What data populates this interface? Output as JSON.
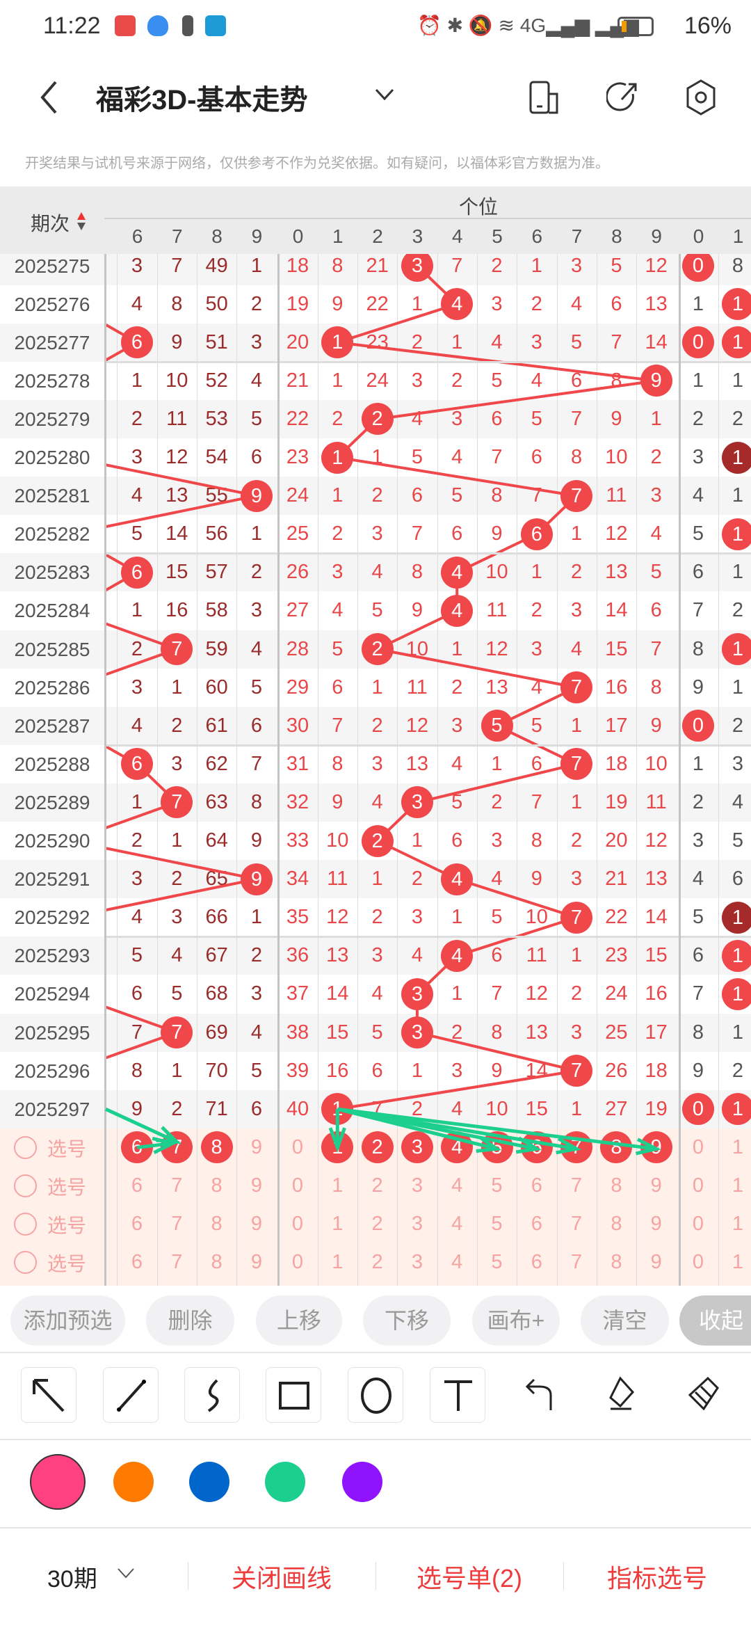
{
  "status": {
    "time": "11:22",
    "battery": "16%",
    "network": "4G"
  },
  "header": {
    "title": "福彩3D-基本走势",
    "notice": "开奖结果与试机号来源于网络，仅供参考不作为兑奖依据。如有疑问，以福体彩官方数据为准。"
  },
  "table": {
    "period_label": "期次",
    "group_ones_label": "个位",
    "left_cols": [
      "6",
      "7",
      "8",
      "9"
    ],
    "ones_cols": [
      "0",
      "1",
      "2",
      "3",
      "4",
      "5",
      "6",
      "7",
      "8",
      "9"
    ],
    "right_cols": [
      "0",
      "1"
    ],
    "colors": {
      "hit": "#f0474a",
      "hit_dark": "#a52a2a",
      "left_text": "#9b2c2c",
      "ones_text": "#e8474a",
      "right_text": "#555555",
      "pick_text": "#f6a3a3"
    },
    "rows": [
      {
        "period": "2025275",
        "left": [
          "3",
          "7",
          "49",
          "1"
        ],
        "left_hit": null,
        "ones": [
          "18",
          "8",
          "21",
          "3",
          "7",
          "2",
          "1",
          "3",
          "5",
          "12"
        ],
        "ones_hit": 3,
        "right": [
          "0",
          "8"
        ],
        "right_hits": [
          0
        ],
        "right_dark": []
      },
      {
        "period": "2025276",
        "left": [
          "4",
          "8",
          "50",
          "2"
        ],
        "left_hit": null,
        "ones": [
          "19",
          "9",
          "22",
          "1",
          "4",
          "3",
          "2",
          "4",
          "6",
          "13"
        ],
        "ones_hit": 4,
        "right": [
          "1",
          "1"
        ],
        "right_hits": [
          1
        ],
        "right_dark": []
      },
      {
        "period": "2025277",
        "left": [
          "6",
          "9",
          "51",
          "3"
        ],
        "left_hit": 0,
        "ones": [
          "20",
          "1",
          "23",
          "2",
          "1",
          "4",
          "3",
          "5",
          "7",
          "14"
        ],
        "ones_hit": 1,
        "right": [
          "0",
          "1"
        ],
        "right_hits": [
          0,
          1
        ],
        "right_dark": []
      },
      {
        "period": "2025278",
        "left": [
          "1",
          "10",
          "52",
          "4"
        ],
        "left_hit": null,
        "ones": [
          "21",
          "1",
          "24",
          "3",
          "2",
          "5",
          "4",
          "6",
          "8",
          "9"
        ],
        "ones_hit": 9,
        "right": [
          "1",
          "1"
        ],
        "right_hits": [],
        "right_dark": []
      },
      {
        "period": "2025279",
        "left": [
          "2",
          "11",
          "53",
          "5"
        ],
        "left_hit": null,
        "ones": [
          "22",
          "2",
          "2",
          "4",
          "3",
          "6",
          "5",
          "7",
          "9",
          "1"
        ],
        "ones_hit": 2,
        "right": [
          "2",
          "2"
        ],
        "right_hits": [],
        "right_dark": []
      },
      {
        "period": "2025280",
        "left": [
          "3",
          "12",
          "54",
          "6"
        ],
        "left_hit": null,
        "ones": [
          "23",
          "1",
          "1",
          "5",
          "4",
          "7",
          "6",
          "8",
          "10",
          "2"
        ],
        "ones_hit": 1,
        "right": [
          "3",
          "1"
        ],
        "right_hits": [
          1
        ],
        "right_dark": [
          1
        ]
      },
      {
        "period": "2025281",
        "left": [
          "4",
          "13",
          "55",
          "9"
        ],
        "left_hit": 3,
        "ones": [
          "24",
          "1",
          "2",
          "6",
          "5",
          "8",
          "7",
          "7",
          "11",
          "3"
        ],
        "ones_hit": 7,
        "right": [
          "4",
          "1"
        ],
        "right_hits": [],
        "right_dark": []
      },
      {
        "period": "2025282",
        "left": [
          "5",
          "14",
          "56",
          "1"
        ],
        "left_hit": null,
        "ones": [
          "25",
          "2",
          "3",
          "7",
          "6",
          "9",
          "6",
          "1",
          "12",
          "4"
        ],
        "ones_hit": 6,
        "right": [
          "5",
          "1"
        ],
        "right_hits": [
          1
        ],
        "right_dark": []
      },
      {
        "period": "2025283",
        "left": [
          "6",
          "15",
          "57",
          "2"
        ],
        "left_hit": 0,
        "ones": [
          "26",
          "3",
          "4",
          "8",
          "4",
          "10",
          "1",
          "2",
          "13",
          "5"
        ],
        "ones_hit": 4,
        "right": [
          "6",
          "1"
        ],
        "right_hits": [],
        "right_dark": []
      },
      {
        "period": "2025284",
        "left": [
          "1",
          "16",
          "58",
          "3"
        ],
        "left_hit": null,
        "ones": [
          "27",
          "4",
          "5",
          "9",
          "4",
          "11",
          "2",
          "3",
          "14",
          "6"
        ],
        "ones_hit": 4,
        "right": [
          "7",
          "2"
        ],
        "right_hits": [],
        "right_dark": []
      },
      {
        "period": "2025285",
        "left": [
          "2",
          "7",
          "59",
          "4"
        ],
        "left_hit": 1,
        "ones": [
          "28",
          "5",
          "2",
          "10",
          "1",
          "12",
          "3",
          "4",
          "15",
          "7"
        ],
        "ones_hit": 2,
        "right": [
          "8",
          "1"
        ],
        "right_hits": [
          1
        ],
        "right_dark": []
      },
      {
        "period": "2025286",
        "left": [
          "3",
          "1",
          "60",
          "5"
        ],
        "left_hit": null,
        "ones": [
          "29",
          "6",
          "1",
          "11",
          "2",
          "13",
          "4",
          "7",
          "16",
          "8"
        ],
        "ones_hit": 7,
        "right": [
          "9",
          "1"
        ],
        "right_hits": [],
        "right_dark": []
      },
      {
        "period": "2025287",
        "left": [
          "4",
          "2",
          "61",
          "6"
        ],
        "left_hit": null,
        "ones": [
          "30",
          "7",
          "2",
          "12",
          "3",
          "5",
          "5",
          "1",
          "17",
          "9"
        ],
        "ones_hit": 5,
        "right": [
          "0",
          "2"
        ],
        "right_hits": [
          0
        ],
        "right_dark": []
      },
      {
        "period": "2025288",
        "left": [
          "6",
          "3",
          "62",
          "7"
        ],
        "left_hit": 0,
        "ones": [
          "31",
          "8",
          "3",
          "13",
          "4",
          "1",
          "6",
          "7",
          "18",
          "10"
        ],
        "ones_hit": 7,
        "right": [
          "1",
          "3"
        ],
        "right_hits": [],
        "right_dark": []
      },
      {
        "period": "2025289",
        "left": [
          "1",
          "7",
          "63",
          "8"
        ],
        "left_hit": 1,
        "ones": [
          "32",
          "9",
          "4",
          "3",
          "5",
          "2",
          "7",
          "1",
          "19",
          "11"
        ],
        "ones_hit": 3,
        "right": [
          "2",
          "4"
        ],
        "right_hits": [],
        "right_dark": []
      },
      {
        "period": "2025290",
        "left": [
          "2",
          "1",
          "64",
          "9"
        ],
        "left_hit": null,
        "ones": [
          "33",
          "10",
          "2",
          "1",
          "6",
          "3",
          "8",
          "2",
          "20",
          "12"
        ],
        "ones_hit": 2,
        "right": [
          "3",
          "5"
        ],
        "right_hits": [],
        "right_dark": []
      },
      {
        "period": "2025291",
        "left": [
          "3",
          "2",
          "65",
          "9"
        ],
        "left_hit": 3,
        "ones": [
          "34",
          "11",
          "1",
          "2",
          "4",
          "4",
          "9",
          "3",
          "21",
          "13"
        ],
        "ones_hit": 4,
        "right": [
          "4",
          "6"
        ],
        "right_hits": [],
        "right_dark": []
      },
      {
        "period": "2025292",
        "left": [
          "4",
          "3",
          "66",
          "1"
        ],
        "left_hit": null,
        "ones": [
          "35",
          "12",
          "2",
          "3",
          "1",
          "5",
          "10",
          "7",
          "22",
          "14"
        ],
        "ones_hit": 7,
        "right": [
          "5",
          "1"
        ],
        "right_hits": [
          1
        ],
        "right_dark": [
          1
        ]
      },
      {
        "period": "2025293",
        "left": [
          "5",
          "4",
          "67",
          "2"
        ],
        "left_hit": null,
        "ones": [
          "36",
          "13",
          "3",
          "4",
          "4",
          "6",
          "11",
          "1",
          "23",
          "15"
        ],
        "ones_hit": 4,
        "right": [
          "6",
          "1"
        ],
        "right_hits": [
          1
        ],
        "right_dark": []
      },
      {
        "period": "2025294",
        "left": [
          "6",
          "5",
          "68",
          "3"
        ],
        "left_hit": null,
        "ones": [
          "37",
          "14",
          "4",
          "3",
          "1",
          "7",
          "12",
          "2",
          "24",
          "16"
        ],
        "ones_hit": 3,
        "right": [
          "7",
          "1"
        ],
        "right_hits": [
          1
        ],
        "right_dark": []
      },
      {
        "period": "2025295",
        "left": [
          "7",
          "7",
          "69",
          "4"
        ],
        "left_hit": 1,
        "ones": [
          "38",
          "15",
          "5",
          "3",
          "2",
          "8",
          "13",
          "3",
          "25",
          "17"
        ],
        "ones_hit": 3,
        "right": [
          "8",
          "1"
        ],
        "right_hits": [],
        "right_dark": []
      },
      {
        "period": "2025296",
        "left": [
          "8",
          "1",
          "70",
          "5"
        ],
        "left_hit": null,
        "ones": [
          "39",
          "16",
          "6",
          "1",
          "3",
          "9",
          "14",
          "7",
          "26",
          "18"
        ],
        "ones_hit": 7,
        "right": [
          "9",
          "2"
        ],
        "right_hits": [],
        "right_dark": []
      },
      {
        "period": "2025297",
        "left": [
          "9",
          "2",
          "71",
          "6"
        ],
        "left_hit": null,
        "ones": [
          "40",
          "1",
          "7",
          "2",
          "4",
          "10",
          "15",
          "1",
          "27",
          "19"
        ],
        "ones_hit": 1,
        "right": [
          "0",
          "1"
        ],
        "right_hits": [
          0,
          1
        ],
        "right_dark": []
      }
    ],
    "picks": [
      {
        "label": "选号",
        "left_sel": [
          0,
          1,
          2
        ],
        "ones_sel": [
          1,
          2,
          3,
          4,
          5,
          6,
          7,
          8,
          9
        ]
      },
      {
        "label": "选号",
        "left_sel": [],
        "ones_sel": []
      },
      {
        "label": "选号",
        "left_sel": [],
        "ones_sel": []
      },
      {
        "label": "选号",
        "left_sel": [],
        "ones_sel": []
      }
    ]
  },
  "actions": [
    "添加预选",
    "删除",
    "上移",
    "下移",
    "画布+",
    "清空",
    "收起"
  ],
  "tools": [
    "arrow-tool",
    "line-tool",
    "curve-tool",
    "rectangle-tool",
    "circle-tool",
    "text-tool",
    "undo",
    "eraser",
    "clear-brush"
  ],
  "palette": [
    "#ff4081",
    "#ff7a00",
    "#0066cc",
    "#1ccf8f",
    "#9013fe"
  ],
  "palette_selected": "#ff4081",
  "annotation_color": "#1ccf8f",
  "bottom": {
    "period_select": "30期",
    "close_draw": "关闭画线",
    "pick_list": "选号单(2)",
    "indicator_pick": "指标选号"
  }
}
